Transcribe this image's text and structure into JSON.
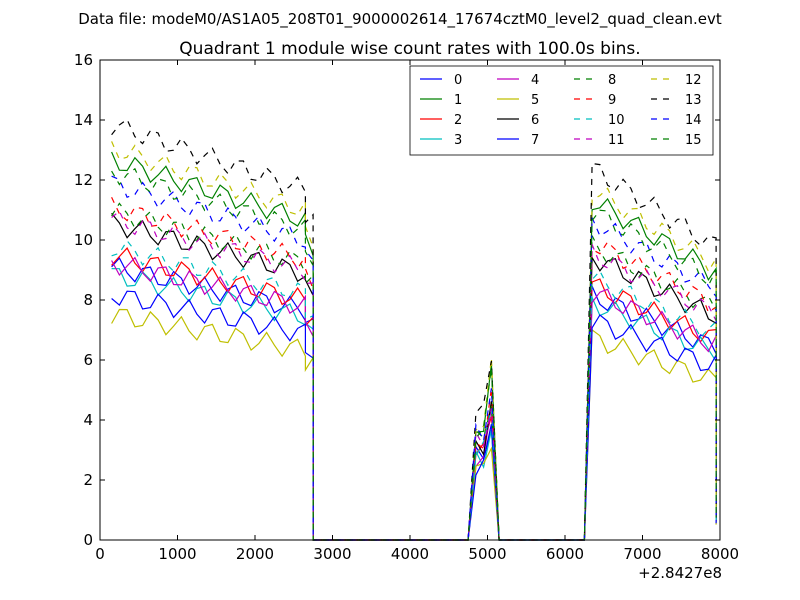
{
  "suptitle": "Data file: modeM0/AS1A05_208T01_9000002614_17674cztM0_level2_quad_clean.evt",
  "chart_data": {
    "type": "line",
    "title": "Quadrant 1 module wise count rates with 100.0s bins.",
    "xlabel": "",
    "ylabel": "",
    "xlim": [
      0,
      8000
    ],
    "ylim": [
      0,
      16
    ],
    "x_offset_label": "+2.8427e8",
    "xticks": [
      0,
      1000,
      2000,
      3000,
      4000,
      5000,
      6000,
      7000,
      8000
    ],
    "yticks": [
      0,
      2,
      4,
      6,
      8,
      10,
      12,
      14,
      16
    ],
    "legend_position": "top-right",
    "legend_columns": 4,
    "segments": [
      {
        "t0": 150,
        "n": 26,
        "start": 13.2,
        "end": 11.1
      },
      {
        "t0": 2650,
        "n": 2,
        "start": 10.4,
        "end": 10.2
      },
      {
        "t0": 2750,
        "n": 21,
        "start": 0,
        "end": 0
      },
      {
        "t0": 4850,
        "n": 3,
        "start": 4.0,
        "end": 4.0
      },
      {
        "t0": 5150,
        "n": 12,
        "start": 0,
        "end": 0
      },
      {
        "t0": 6350,
        "n": 15,
        "start": 11.8,
        "end": 9.6
      },
      {
        "t0": 7850,
        "n": 2,
        "start": 9.4,
        "end": 9.4
      },
      {
        "t0": 7950,
        "n": 1,
        "start": 0.9,
        "end": 0.9
      }
    ],
    "peak_at": 5050,
    "peak_value": 5.8,
    "series": [
      {
        "name": "0",
        "color": "#0000ff",
        "style": "solid",
        "scale": 0.69
      },
      {
        "name": "1",
        "color": "#008000",
        "style": "solid",
        "scale": 0.96
      },
      {
        "name": "2",
        "color": "#ff0000",
        "style": "solid",
        "scale": 0.72
      },
      {
        "name": "3",
        "color": "#00bfbf",
        "style": "solid",
        "scale": 0.67
      },
      {
        "name": "4",
        "color": "#bf00bf",
        "style": "solid",
        "scale": 0.7
      },
      {
        "name": "5",
        "color": "#bfbf00",
        "style": "solid",
        "scale": 0.57
      },
      {
        "name": "6",
        "color": "#000000",
        "style": "solid",
        "scale": 0.8
      },
      {
        "name": "7",
        "color": "#0000ff",
        "style": "solid",
        "scale": 0.62
      },
      {
        "name": "8",
        "color": "#008000",
        "style": "dashed",
        "scale": 0.83
      },
      {
        "name": "9",
        "color": "#ff0000",
        "style": "dashed",
        "scale": 0.84
      },
      {
        "name": "10",
        "color": "#00bfbf",
        "style": "dashed",
        "scale": 0.74
      },
      {
        "name": "11",
        "color": "#bf00bf",
        "style": "dashed",
        "scale": 0.81
      },
      {
        "name": "12",
        "color": "#bfbf00",
        "style": "dashed",
        "scale": 0.99
      },
      {
        "name": "13",
        "color": "#000000",
        "style": "dashed",
        "scale": 1.05
      },
      {
        "name": "14",
        "color": "#0000ff",
        "style": "dashed",
        "scale": 0.9
      },
      {
        "name": "15",
        "color": "#008000",
        "style": "dashed",
        "scale": 0.93
      }
    ]
  }
}
